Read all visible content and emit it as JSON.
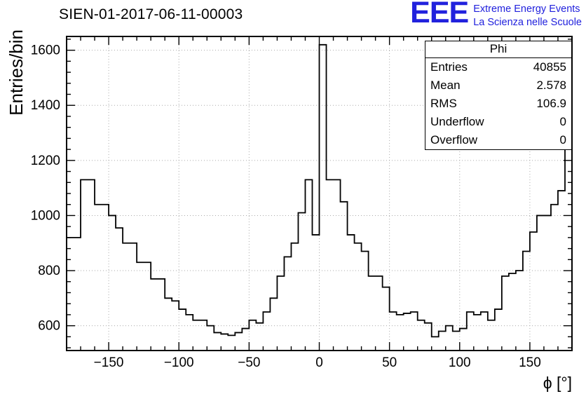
{
  "header": {
    "title": "SIEN-01-2017-06-11-00003",
    "logo": {
      "acronym": "EEE",
      "line1": "Extreme Energy Events",
      "line2": "La Scienza nelle Scuole",
      "color": "#2121dd"
    }
  },
  "stats": {
    "title": "Phi",
    "rows": [
      {
        "label": "Entries",
        "value": "40855"
      },
      {
        "label": "Mean",
        "value": "2.578"
      },
      {
        "label": "RMS",
        "value": "106.9"
      },
      {
        "label": "Underflow",
        "value": "0"
      },
      {
        "label": "Overflow",
        "value": "0"
      }
    ]
  },
  "chart_data": {
    "type": "bar",
    "title": "SIEN-01-2017-06-11-00003",
    "xlabel": "ϕ [°]",
    "ylabel": "Entries/bin",
    "xlim": [
      -180,
      180
    ],
    "ylim": [
      510,
      1650
    ],
    "grid": true,
    "legend": false,
    "bins": {
      "start": -180,
      "width": 5
    },
    "values": [
      920,
      920,
      1130,
      1130,
      1040,
      1040,
      1000,
      955,
      900,
      900,
      830,
      830,
      770,
      770,
      700,
      690,
      660,
      640,
      620,
      620,
      600,
      575,
      570,
      565,
      575,
      590,
      620,
      610,
      650,
      700,
      780,
      850,
      900,
      1010,
      1130,
      930,
      1620,
      1130,
      1130,
      1050,
      930,
      900,
      870,
      780,
      780,
      740,
      650,
      640,
      645,
      650,
      620,
      610,
      560,
      580,
      600,
      580,
      590,
      650,
      640,
      650,
      620,
      660,
      780,
      790,
      800,
      870,
      940,
      1000,
      1000,
      1040,
      1090,
      1560
    ],
    "xticks": [
      -150,
      -100,
      -50,
      0,
      50,
      100,
      150
    ],
    "yticks": [
      600,
      800,
      1000,
      1200,
      1400,
      1600
    ],
    "x_minor_step": 10,
    "y_minor_step": 40,
    "line_color": "#000000",
    "grid_color": "#aaaaaa",
    "frame_color": "#000000"
  }
}
